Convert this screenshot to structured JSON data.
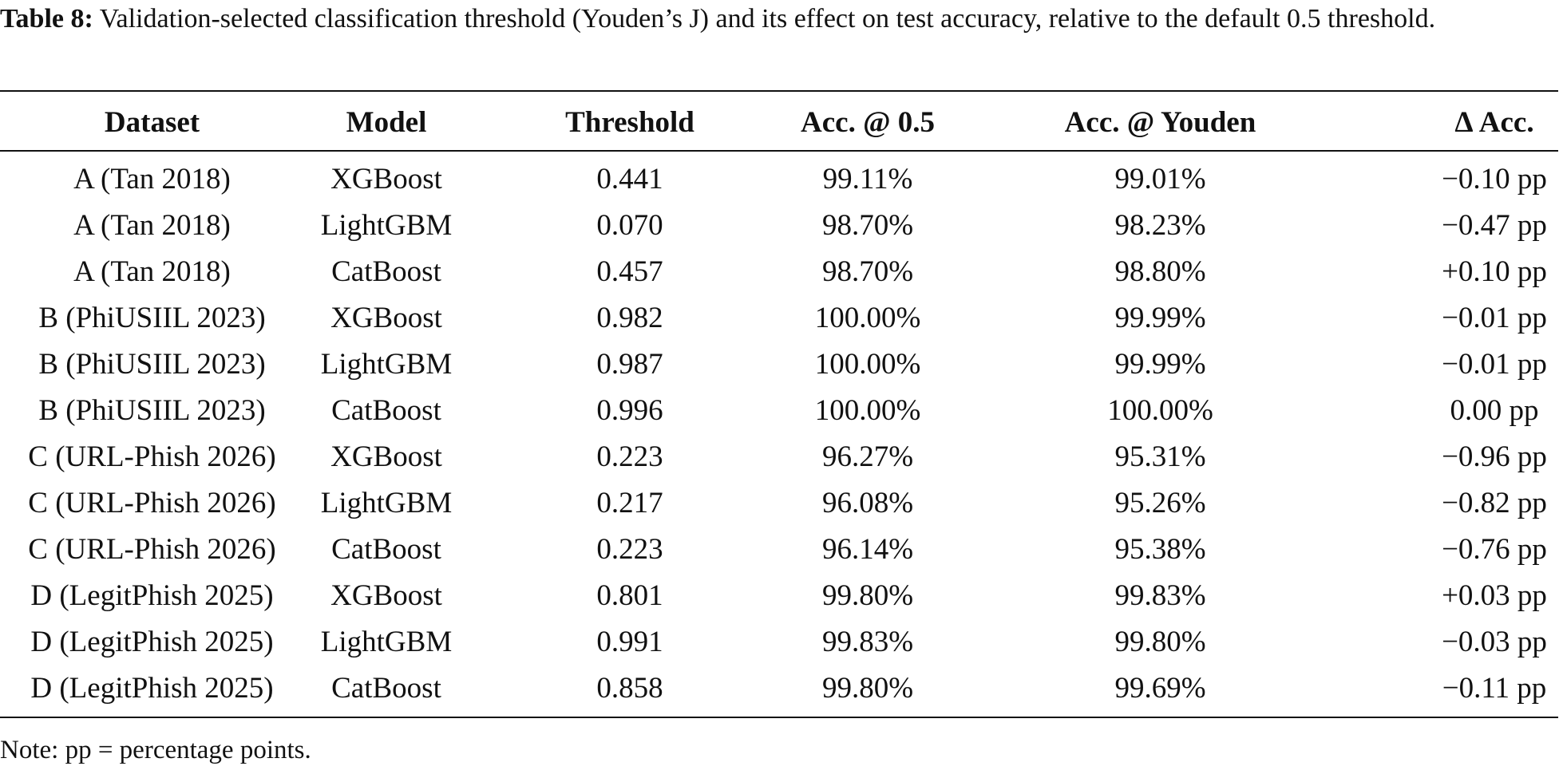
{
  "caption": {
    "label": "Table 8:",
    "text": "Validation-selected classification threshold (Youden’s J) and its effect on test accuracy, relative to the default 0.5 threshold."
  },
  "table": {
    "headers": [
      "Dataset",
      "Model",
      "Threshold",
      "Acc. @ 0.5",
      "Acc. @ Youden",
      "Δ Acc."
    ],
    "rows": [
      [
        "A (Tan 2018)",
        "XGBoost",
        "0.441",
        "99.11%",
        "99.01%",
        "−0.10 pp"
      ],
      [
        "A (Tan 2018)",
        "LightGBM",
        "0.070",
        "98.70%",
        "98.23%",
        "−0.47 pp"
      ],
      [
        "A (Tan 2018)",
        "CatBoost",
        "0.457",
        "98.70%",
        "98.80%",
        "+0.10 pp"
      ],
      [
        "B (PhiUSIIL 2023)",
        "XGBoost",
        "0.982",
        "100.00%",
        "99.99%",
        "−0.01 pp"
      ],
      [
        "B (PhiUSIIL 2023)",
        "LightGBM",
        "0.987",
        "100.00%",
        "99.99%",
        "−0.01 pp"
      ],
      [
        "B (PhiUSIIL 2023)",
        "CatBoost",
        "0.996",
        "100.00%",
        "100.00%",
        "0.00 pp"
      ],
      [
        "C (URL-Phish 2026)",
        "XGBoost",
        "0.223",
        "96.27%",
        "95.31%",
        "−0.96 pp"
      ],
      [
        "C (URL-Phish 2026)",
        "LightGBM",
        "0.217",
        "96.08%",
        "95.26%",
        "−0.82 pp"
      ],
      [
        "C (URL-Phish 2026)",
        "CatBoost",
        "0.223",
        "96.14%",
        "95.38%",
        "−0.76 pp"
      ],
      [
        "D (LegitPhish 2025)",
        "XGBoost",
        "0.801",
        "99.80%",
        "99.83%",
        "+0.03 pp"
      ],
      [
        "D (LegitPhish 2025)",
        "LightGBM",
        "0.991",
        "99.83%",
        "99.80%",
        "−0.03 pp"
      ],
      [
        "D (LegitPhish 2025)",
        "CatBoost",
        "0.858",
        "99.80%",
        "99.69%",
        "−0.11 pp"
      ]
    ]
  },
  "note": "Note: pp = percentage points."
}
